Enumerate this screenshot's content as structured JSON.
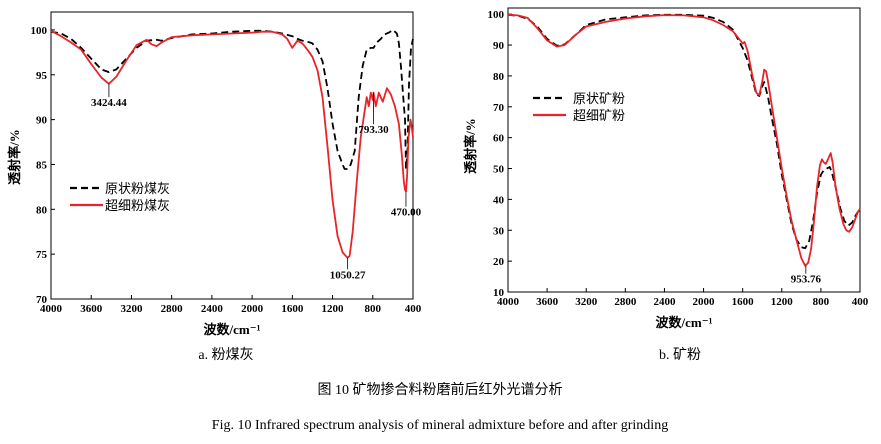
{
  "captions": {
    "panel_a": "a. 粉煤灰",
    "panel_b": "b. 矿粉",
    "figure_cn": "图 10  矿物掺合料粉磨前后红外光谱分析",
    "figure_en": "Fig. 10 Infrared spectrum analysis of mineral admixture before and after grinding"
  },
  "chart_data": [
    {
      "type": "line",
      "xlabel": "波数/cm⁻¹",
      "ylabel": "透射率/%",
      "xlim": [
        4000,
        400
      ],
      "ylim": [
        70,
        102
      ],
      "x_ticks": [
        4000,
        3600,
        3200,
        2800,
        2400,
        2000,
        1600,
        1200,
        800,
        400
      ],
      "y_ticks": [
        70,
        75,
        80,
        85,
        90,
        95,
        100
      ],
      "legend_position": "center-left",
      "colors": {
        "raw": "#000000",
        "ultrafine": "#e8232a"
      },
      "series": [
        {
          "name": "原状粉煤灰",
          "style": "dashed",
          "points": [
            [
              4000,
              99.8
            ],
            [
              3900,
              99.6
            ],
            [
              3800,
              99.0
            ],
            [
              3700,
              98.0
            ],
            [
              3600,
              96.8
            ],
            [
              3500,
              95.6
            ],
            [
              3424,
              95.3
            ],
            [
              3350,
              95.6
            ],
            [
              3250,
              96.8
            ],
            [
              3150,
              98.0
            ],
            [
              3050,
              98.8
            ],
            [
              2950,
              98.9
            ],
            [
              2900,
              98.8
            ],
            [
              2800,
              99.1
            ],
            [
              2600,
              99.5
            ],
            [
              2400,
              99.6
            ],
            [
              2200,
              99.8
            ],
            [
              2000,
              99.9
            ],
            [
              1900,
              99.9
            ],
            [
              1800,
              99.8
            ],
            [
              1700,
              99.6
            ],
            [
              1600,
              99.3
            ],
            [
              1550,
              99.0
            ],
            [
              1500,
              98.8
            ],
            [
              1450,
              98.7
            ],
            [
              1400,
              98.5
            ],
            [
              1350,
              97.8
            ],
            [
              1300,
              96.5
            ],
            [
              1250,
              93.5
            ],
            [
              1200,
              89.5
            ],
            [
              1150,
              86.5
            ],
            [
              1100,
              85.0
            ],
            [
              1080,
              84.5
            ],
            [
              1050,
              84.5
            ],
            [
              1020,
              85.0
            ],
            [
              980,
              86.5
            ],
            [
              940,
              92.5
            ],
            [
              900,
              96.0
            ],
            [
              860,
              97.8
            ],
            [
              820,
              98.0
            ],
            [
              793,
              98.0
            ],
            [
              760,
              98.6
            ],
            [
              720,
              99.0
            ],
            [
              680,
              99.5
            ],
            [
              640,
              99.7
            ],
            [
              600,
              100.0
            ],
            [
              580,
              99.8
            ],
            [
              560,
              99.6
            ],
            [
              540,
              98.5
            ],
            [
              520,
              96.0
            ],
            [
              500,
              93.0
            ],
            [
              480,
              90.0
            ],
            [
              470,
              84.5
            ],
            [
              455,
              86.5
            ],
            [
              440,
              94.0
            ],
            [
              420,
              98.0
            ],
            [
              400,
              99.0
            ]
          ]
        },
        {
          "name": "超细粉煤灰",
          "style": "solid",
          "points": [
            [
              4000,
              99.9
            ],
            [
              3900,
              99.3
            ],
            [
              3800,
              98.6
            ],
            [
              3700,
              97.8
            ],
            [
              3600,
              96.2
            ],
            [
              3500,
              94.7
            ],
            [
              3424,
              94.0
            ],
            [
              3350,
              94.8
            ],
            [
              3250,
              96.6
            ],
            [
              3150,
              98.3
            ],
            [
              3050,
              98.9
            ],
            [
              3000,
              98.4
            ],
            [
              2950,
              98.2
            ],
            [
              2900,
              98.6
            ],
            [
              2800,
              99.2
            ],
            [
              2600,
              99.4
            ],
            [
              2400,
              99.5
            ],
            [
              2200,
              99.6
            ],
            [
              2000,
              99.7
            ],
            [
              1900,
              99.8
            ],
            [
              1800,
              99.8
            ],
            [
              1700,
              99.5
            ],
            [
              1650,
              99.0
            ],
            [
              1600,
              98.0
            ],
            [
              1550,
              98.8
            ],
            [
              1500,
              98.5
            ],
            [
              1450,
              97.8
            ],
            [
              1400,
              97.0
            ],
            [
              1350,
              95.5
            ],
            [
              1300,
              92.5
            ],
            [
              1250,
              87.0
            ],
            [
              1200,
              81.0
            ],
            [
              1150,
              77.0
            ],
            [
              1100,
              75.2
            ],
            [
              1060,
              74.7
            ],
            [
              1050,
              74.6
            ],
            [
              1030,
              74.8
            ],
            [
              1000,
              77.5
            ],
            [
              960,
              83.0
            ],
            [
              920,
              88.0
            ],
            [
              880,
              91.0
            ],
            [
              860,
              92.5
            ],
            [
              840,
              91.5
            ],
            [
              820,
              93.0
            ],
            [
              800,
              92.2
            ],
            [
              793,
              93.0
            ],
            [
              770,
              91.5
            ],
            [
              740,
              93.0
            ],
            [
              700,
              92.0
            ],
            [
              660,
              93.5
            ],
            [
              620,
              92.8
            ],
            [
              580,
              91.5
            ],
            [
              540,
              89.5
            ],
            [
              510,
              86.0
            ],
            [
              490,
              83.0
            ],
            [
              480,
              82.2
            ],
            [
              470,
              82.0
            ],
            [
              460,
              83.5
            ],
            [
              445,
              88.0
            ],
            [
              425,
              90.0
            ],
            [
              410,
              89.0
            ],
            [
              400,
              88.0
            ]
          ]
        }
      ],
      "annotations": [
        {
          "text": "3424.44",
          "x": 3424,
          "y": 94.0,
          "label_y": 91.5,
          "anchor": "middle"
        },
        {
          "text": "1050.27",
          "x": 1050,
          "y": 74.6,
          "label_y": 72.3,
          "anchor": "middle"
        },
        {
          "text": "793.30",
          "x": 793,
          "y": 93.0,
          "label_y": 88.5,
          "anchor": "middle"
        },
        {
          "text": "470.00",
          "x": 470,
          "y": 82.0,
          "label_y": 79.3,
          "anchor": "middle"
        }
      ]
    },
    {
      "type": "line",
      "xlabel": "波数/cm⁻¹",
      "ylabel": "透射率/%",
      "xlim": [
        4000,
        400
      ],
      "ylim": [
        10,
        102
      ],
      "x_ticks": [
        4000,
        3600,
        3200,
        2800,
        2400,
        2000,
        1600,
        1200,
        800,
        400
      ],
      "y_ticks": [
        10,
        20,
        30,
        40,
        50,
        60,
        70,
        80,
        90,
        100
      ],
      "legend_position": "center-left",
      "colors": {
        "raw": "#000000",
        "ultrafine": "#e8232a"
      },
      "series": [
        {
          "name": "原状矿粉",
          "style": "dashed",
          "points": [
            [
              4000,
              99.8
            ],
            [
              3900,
              99.5
            ],
            [
              3800,
              98.5
            ],
            [
              3700,
              96.0
            ],
            [
              3600,
              92.0
            ],
            [
              3500,
              89.8
            ],
            [
              3420,
              90.2
            ],
            [
              3300,
              93.5
            ],
            [
              3200,
              96.5
            ],
            [
              3000,
              98.3
            ],
            [
              2800,
              99.0
            ],
            [
              2600,
              99.6
            ],
            [
              2400,
              99.8
            ],
            [
              2200,
              99.8
            ],
            [
              2000,
              99.5
            ],
            [
              1900,
              98.8
            ],
            [
              1800,
              97.5
            ],
            [
              1700,
              95.0
            ],
            [
              1650,
              92.0
            ],
            [
              1600,
              89.0
            ],
            [
              1550,
              85.0
            ],
            [
              1500,
              79.0
            ],
            [
              1460,
              74.0
            ],
            [
              1430,
              73.5
            ],
            [
              1400,
              76.5
            ],
            [
              1380,
              78.0
            ],
            [
              1340,
              73.0
            ],
            [
              1300,
              66.0
            ],
            [
              1250,
              58.0
            ],
            [
              1200,
              48.0
            ],
            [
              1150,
              40.0
            ],
            [
              1100,
              32.0
            ],
            [
              1050,
              27.0
            ],
            [
              1000,
              24.5
            ],
            [
              960,
              24.2
            ],
            [
              920,
              26.5
            ],
            [
              880,
              33.0
            ],
            [
              840,
              42.0
            ],
            [
              800,
              48.0
            ],
            [
              770,
              49.5
            ],
            [
              740,
              50.0
            ],
            [
              710,
              50.5
            ],
            [
              690,
              49.0
            ],
            [
              650,
              44.0
            ],
            [
              600,
              37.0
            ],
            [
              560,
              33.0
            ],
            [
              520,
              31.5
            ],
            [
              480,
              32.5
            ],
            [
              450,
              34.5
            ],
            [
              420,
              36.0
            ],
            [
              400,
              36.5
            ]
          ]
        },
        {
          "name": "超细矿粉",
          "style": "solid",
          "points": [
            [
              4000,
              99.8
            ],
            [
              3900,
              99.6
            ],
            [
              3800,
              98.8
            ],
            [
              3700,
              95.5
            ],
            [
              3600,
              91.5
            ],
            [
              3500,
              89.5
            ],
            [
              3420,
              90.0
            ],
            [
              3300,
              93.5
            ],
            [
              3200,
              96.0
            ],
            [
              3000,
              97.5
            ],
            [
              2800,
              98.6
            ],
            [
              2600,
              99.3
            ],
            [
              2400,
              99.7
            ],
            [
              2200,
              99.6
            ],
            [
              2000,
              99.0
            ],
            [
              1900,
              98.0
            ],
            [
              1800,
              96.5
            ],
            [
              1700,
              94.5
            ],
            [
              1650,
              92.5
            ],
            [
              1600,
              90.5
            ],
            [
              1580,
              91.0
            ],
            [
              1550,
              88.0
            ],
            [
              1500,
              80.0
            ],
            [
              1460,
              74.5
            ],
            [
              1430,
              73.8
            ],
            [
              1400,
              78.0
            ],
            [
              1380,
              82.0
            ],
            [
              1360,
              81.5
            ],
            [
              1340,
              78.0
            ],
            [
              1300,
              70.0
            ],
            [
              1250,
              60.0
            ],
            [
              1200,
              50.0
            ],
            [
              1150,
              41.0
            ],
            [
              1100,
              33.0
            ],
            [
              1050,
              27.0
            ],
            [
              1000,
              21.0
            ],
            [
              960,
              18.5
            ],
            [
              930,
              19.5
            ],
            [
              900,
              24.0
            ],
            [
              870,
              33.0
            ],
            [
              840,
              44.0
            ],
            [
              810,
              51.0
            ],
            [
              790,
              53.0
            ],
            [
              770,
              52.0
            ],
            [
              750,
              51.5
            ],
            [
              720,
              53.5
            ],
            [
              700,
              55.0
            ],
            [
              680,
              52.0
            ],
            [
              650,
              44.0
            ],
            [
              610,
              37.0
            ],
            [
              570,
              32.0
            ],
            [
              540,
              30.0
            ],
            [
              510,
              29.5
            ],
            [
              480,
              31.0
            ],
            [
              450,
              33.5
            ],
            [
              420,
              36.0
            ],
            [
              400,
              37.0
            ]
          ]
        }
      ],
      "annotations": [
        {
          "text": "953.76",
          "x": 953.76,
          "y": 18.5,
          "label_y": 13.0,
          "anchor": "middle"
        }
      ]
    }
  ]
}
